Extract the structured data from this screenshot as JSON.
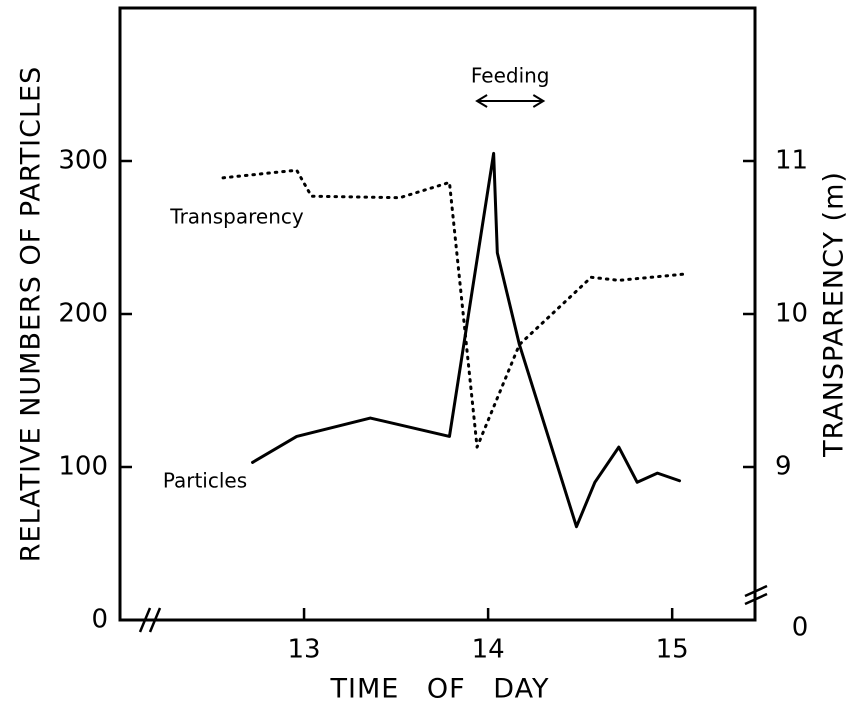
{
  "chart_data": {
    "type": "line",
    "xlabel": "TIME OF DAY",
    "ylabel": "RELATIVE NUMBERS OF PARTICLES",
    "y2label": "TRANSPARENCY (m)",
    "xlim": [
      12.0,
      15.45
    ],
    "xticks": [
      13,
      14,
      15
    ],
    "ylim": [
      0,
      400
    ],
    "yticks": [
      0,
      100,
      200,
      300
    ],
    "y2lim": [
      8,
      12
    ],
    "y2ticks": [
      9,
      10,
      11
    ],
    "y2_axis_break_label": "0",
    "annotations": [
      {
        "text": "Feeding",
        "x_from": 13.94,
        "x_to": 14.3
      }
    ],
    "series": [
      {
        "name": "Particles",
        "color": "#000000",
        "style": "solid",
        "x": [
          12.72,
          12.96,
          13.36,
          13.79,
          14.03,
          14.05,
          14.17,
          14.48,
          14.58,
          14.71,
          14.81,
          14.92,
          15.04
        ],
        "values": [
          103,
          120,
          132,
          120,
          305,
          240,
          180,
          61,
          90,
          113,
          90,
          96,
          91
        ]
      },
      {
        "name": "Transparency",
        "color": "#000000",
        "style": "dotted",
        "axis": "y2",
        "x": [
          12.56,
          12.96,
          13.04,
          13.52,
          13.79,
          13.94,
          14.17,
          14.56,
          14.71,
          15.06
        ],
        "values": [
          10.89,
          10.94,
          10.77,
          10.76,
          10.86,
          9.13,
          9.8,
          10.24,
          10.22,
          10.26
        ]
      }
    ]
  }
}
